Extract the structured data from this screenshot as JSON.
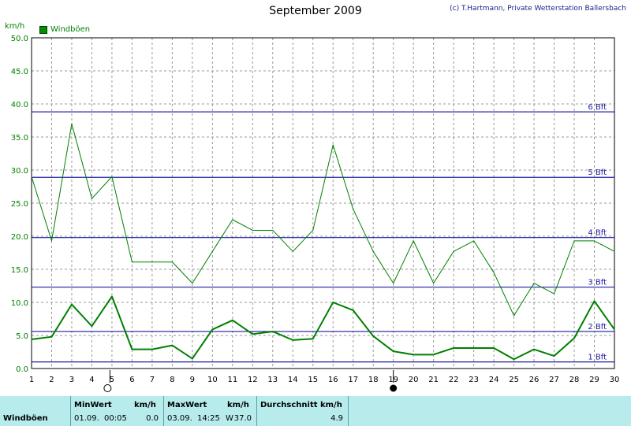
{
  "title": "September 2009",
  "copyright": "(c) T.Hartmann, Private Wetterstation Ballersbach",
  "unit_label": "km/h",
  "legend": {
    "label": "Windböen",
    "color": "#008000"
  },
  "chart_data": {
    "type": "line",
    "title": "September 2009",
    "ylabel": "km/h",
    "ylim": [
      0,
      50
    ],
    "xlim": [
      1,
      30
    ],
    "y_ticks": [
      "0.0",
      "5.0",
      "10.0",
      "15.0",
      "20.0",
      "25.0",
      "30.0",
      "35.0",
      "40.0",
      "45.0",
      "50.0"
    ],
    "x_ticks": [
      "1",
      "2",
      "3",
      "4",
      "5",
      "6",
      "7",
      "8",
      "9",
      "10",
      "11",
      "12",
      "13",
      "14",
      "15",
      "16",
      "17",
      "18",
      "19",
      "20",
      "21",
      "22",
      "23",
      "24",
      "25",
      "26",
      "27",
      "28",
      "29",
      "30"
    ],
    "grid": true,
    "x": [
      1,
      2,
      3,
      4,
      5,
      6,
      7,
      8,
      9,
      10,
      11,
      12,
      13,
      14,
      15,
      16,
      17,
      18,
      19,
      20,
      21,
      22,
      23,
      24,
      25,
      26,
      27,
      28,
      29,
      30
    ],
    "series": [
      {
        "name": "Windböen",
        "color": "#008000",
        "values": [
          29.0,
          19.3,
          37.0,
          25.7,
          29.0,
          16.1,
          16.1,
          16.1,
          12.9,
          17.7,
          22.5,
          20.9,
          20.9,
          17.7,
          20.9,
          33.8,
          24.1,
          17.7,
          12.9,
          19.3,
          12.9,
          17.7,
          19.3,
          14.5,
          8.0,
          12.9,
          11.3,
          19.3,
          19.3,
          17.7
        ]
      },
      {
        "color": "#008000",
        "values": [
          4.4,
          4.8,
          9.7,
          6.4,
          10.9,
          2.9,
          2.9,
          3.5,
          1.5,
          5.9,
          7.3,
          5.2,
          5.6,
          4.3,
          4.5,
          10.0,
          8.8,
          4.9,
          2.6,
          2.1,
          2.1,
          3.1,
          3.1,
          3.1,
          1.4,
          2.9,
          1.9,
          4.6,
          10.2,
          5.9
        ]
      }
    ],
    "reference_lines": [
      {
        "y": 1.0,
        "label": "1 Bft"
      },
      {
        "y": 5.6,
        "label": "2 Bft"
      },
      {
        "y": 12.3,
        "label": "3 Bft"
      },
      {
        "y": 19.8,
        "label": "4 Bft"
      },
      {
        "y": 28.9,
        "label": "5 Bft"
      },
      {
        "y": 38.8,
        "label": "6 Bft"
      }
    ],
    "moon_phases": [
      {
        "day": 4.9,
        "phase": "full"
      },
      {
        "day": 19.0,
        "phase": "new"
      }
    ]
  },
  "stats": {
    "row_label": "Windböen",
    "min_header": "MinWert",
    "min_unit": "km/h",
    "min_date": "01.09.",
    "min_time": "00:05",
    "min_value": "0.0",
    "max_header": "MaxWert",
    "max_unit": "km/h",
    "max_date": "03.09.",
    "max_time": "14:25",
    "max_dir": "W",
    "max_value": "37.0",
    "avg_header": "Durchschnitt km/h",
    "avg_value": "4.9"
  }
}
